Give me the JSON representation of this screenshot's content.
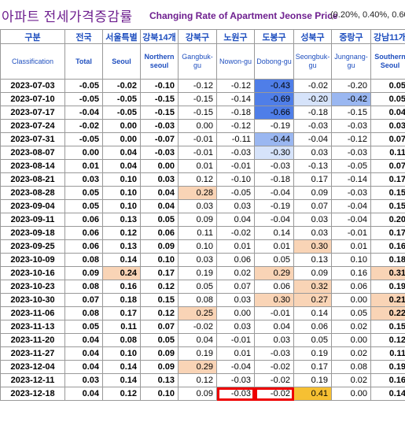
{
  "title": {
    "korean": "아파트 전세가격증감률",
    "english": "Changing Rate of Apartment Jeonse Price",
    "note": "(0.20%, 0.40%, 0.60"
  },
  "columns": [
    {
      "kr": "구분",
      "en": "Classification"
    },
    {
      "kr": "전국",
      "en": "Total"
    },
    {
      "kr": "서울특별",
      "en": "Seoul"
    },
    {
      "kr": "강북14개",
      "en": "Northern seoul"
    },
    {
      "kr": "강북구",
      "en": "Gangbuk-gu"
    },
    {
      "kr": "노원구",
      "en": "Nowon-gu"
    },
    {
      "kr": "도봉구",
      "en": "Dobong-gu"
    },
    {
      "kr": "성북구",
      "en": "Seongbuk-gu"
    },
    {
      "kr": "중랑구",
      "en": "Jungnang-gu"
    },
    {
      "kr": "강남11개",
      "en": "Southern Seoul"
    }
  ],
  "rows": [
    {
      "date": "2023-07-03",
      "v": [
        "-0.05",
        "-0.02",
        "-0.10",
        "-0.12",
        "-0.12",
        "-0.43",
        "-0.02",
        "-0.20",
        "0.05"
      ]
    },
    {
      "date": "2023-07-10",
      "v": [
        "-0.05",
        "-0.05",
        "-0.15",
        "-0.15",
        "-0.14",
        "-0.69",
        "-0.20",
        "-0.42",
        "0.05"
      ]
    },
    {
      "date": "2023-07-17",
      "v": [
        "-0.04",
        "-0.05",
        "-0.15",
        "-0.15",
        "-0.18",
        "-0.66",
        "-0.18",
        "-0.15",
        "0.04"
      ]
    },
    {
      "date": "2023-07-24",
      "v": [
        "-0.02",
        "0.00",
        "-0.03",
        "0.00",
        "-0.12",
        "-0.19",
        "-0.03",
        "-0.03",
        "0.03"
      ]
    },
    {
      "date": "2023-07-31",
      "v": [
        "-0.05",
        "0.00",
        "-0.07",
        "-0.01",
        "-0.11",
        "-0.44",
        "-0.04",
        "-0.12",
        "0.07"
      ]
    },
    {
      "date": "2023-08-07",
      "v": [
        "0.00",
        "0.04",
        "-0.03",
        "-0.01",
        "-0.03",
        "-0.30",
        "0.03",
        "-0.03",
        "0.11"
      ]
    },
    {
      "date": "2023-08-14",
      "v": [
        "0.01",
        "0.04",
        "0.00",
        "0.01",
        "-0.01",
        "-0.03",
        "-0.13",
        "-0.05",
        "0.07"
      ]
    },
    {
      "date": "2023-08-21",
      "v": [
        "0.03",
        "0.10",
        "0.03",
        "0.12",
        "-0.10",
        "-0.18",
        "0.17",
        "-0.14",
        "0.17"
      ]
    },
    {
      "date": "2023-08-28",
      "v": [
        "0.05",
        "0.10",
        "0.04",
        "0.28",
        "-0.05",
        "-0.04",
        "0.09",
        "-0.03",
        "0.15"
      ]
    },
    {
      "date": "2023-09-04",
      "v": [
        "0.05",
        "0.10",
        "0.04",
        "0.03",
        "0.03",
        "-0.19",
        "0.07",
        "-0.04",
        "0.15"
      ]
    },
    {
      "date": "2023-09-11",
      "v": [
        "0.06",
        "0.13",
        "0.05",
        "0.09",
        "0.04",
        "-0.04",
        "0.03",
        "-0.04",
        "0.20"
      ]
    },
    {
      "date": "2023-09-18",
      "v": [
        "0.06",
        "0.12",
        "0.06",
        "0.11",
        "-0.02",
        "0.14",
        "0.03",
        "-0.01",
        "0.17"
      ]
    },
    {
      "date": "2023-09-25",
      "v": [
        "0.06",
        "0.13",
        "0.09",
        "0.10",
        "0.01",
        "0.01",
        "0.30",
        "0.01",
        "0.16"
      ]
    },
    {
      "date": "2023-10-09",
      "v": [
        "0.08",
        "0.14",
        "0.10",
        "0.03",
        "0.06",
        "0.05",
        "0.13",
        "0.10",
        "0.18"
      ]
    },
    {
      "date": "2023-10-16",
      "v": [
        "0.09",
        "0.24",
        "0.17",
        "0.19",
        "0.02",
        "0.29",
        "0.09",
        "0.16",
        "0.31"
      ]
    },
    {
      "date": "2023-10-23",
      "v": [
        "0.08",
        "0.16",
        "0.12",
        "0.05",
        "0.07",
        "0.06",
        "0.32",
        "0.06",
        "0.19"
      ]
    },
    {
      "date": "2023-10-30",
      "v": [
        "0.07",
        "0.18",
        "0.15",
        "0.08",
        "0.03",
        "0.30",
        "0.27",
        "0.00",
        "0.21"
      ]
    },
    {
      "date": "2023-11-06",
      "v": [
        "0.08",
        "0.17",
        "0.12",
        "0.25",
        "0.00",
        "-0.01",
        "0.14",
        "0.05",
        "0.22"
      ]
    },
    {
      "date": "2023-11-13",
      "v": [
        "0.05",
        "0.11",
        "0.07",
        "-0.02",
        "0.03",
        "0.04",
        "0.06",
        "0.02",
        "0.15"
      ]
    },
    {
      "date": "2023-11-20",
      "v": [
        "0.04",
        "0.08",
        "0.05",
        "0.04",
        "-0.01",
        "0.03",
        "0.05",
        "0.00",
        "0.12"
      ]
    },
    {
      "date": "2023-11-27",
      "v": [
        "0.04",
        "0.10",
        "0.09",
        "0.19",
        "0.01",
        "-0.03",
        "0.19",
        "0.02",
        "0.11"
      ]
    },
    {
      "date": "2023-12-04",
      "v": [
        "0.04",
        "0.14",
        "0.09",
        "0.29",
        "-0.04",
        "-0.02",
        "0.17",
        "0.08",
        "0.19"
      ]
    },
    {
      "date": "2023-12-11",
      "v": [
        "0.03",
        "0.14",
        "0.13",
        "0.12",
        "-0.03",
        "-0.02",
        "0.19",
        "0.02",
        "0.16"
      ]
    },
    {
      "date": "2023-12-18",
      "v": [
        "0.04",
        "0.12",
        "0.10",
        "0.09",
        "-0.03",
        "-0.02",
        "0.41",
        "0.00",
        "0.14"
      ]
    }
  ],
  "bold_columns": [
    0,
    1,
    2,
    8
  ],
  "highlights": {
    "0-5": "blue1",
    "1-5": "blue1",
    "2-5": "blue1",
    "4-5": "blue2",
    "5-5": "blue3",
    "1-6": "blue3",
    "1-7": "blue2",
    "8-3": "peach",
    "21-3": "peach",
    "17-3": "peach",
    "12-6": "peach",
    "15-6": "peach",
    "16-6": "peach",
    "23-6": "gold",
    "14-1": "peach",
    "14-5": "peach",
    "16-5": "peach",
    "14-8": "peach",
    "16-8": "peach",
    "17-8": "peach"
  },
  "red_boxed_cells": [
    "23-4",
    "23-5"
  ],
  "colors": {
    "header_text": "#1f4fbf",
    "title_text": "#6e1f8f",
    "strong_decline": "#4f7ee8",
    "moderate_decline": "#9ab7f1",
    "mild_decline": "#d6e3fa",
    "moderate_rise": "#f9d4b6",
    "strong_rise": "#f6c033",
    "annotation_box": "#e00000"
  }
}
